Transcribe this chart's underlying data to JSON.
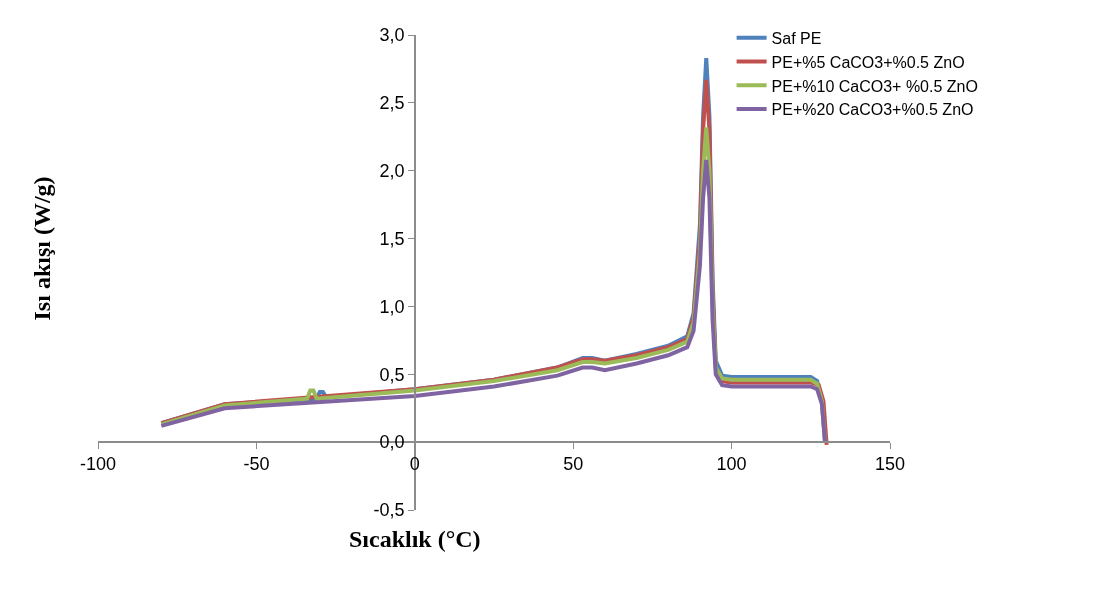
{
  "chart_data": {
    "type": "line",
    "xlabel": "Sıcaklık (°C)",
    "ylabel": "Isı akışı (W/g)",
    "xlim": [
      -100,
      150
    ],
    "xticks": [
      -100,
      -50,
      0,
      50,
      100,
      150
    ],
    "ylim": [
      -0.5,
      3.0
    ],
    "yticks": [
      {
        "value": -0.5,
        "label": "-0,5"
      },
      {
        "value": 0.0,
        "label": "0,0"
      },
      {
        "value": 0.5,
        "label": "0,5"
      },
      {
        "value": 1.0,
        "label": "1,0"
      },
      {
        "value": 1.5,
        "label": "1,5"
      },
      {
        "value": 2.0,
        "label": "2,0"
      },
      {
        "value": 2.5,
        "label": "2,5"
      },
      {
        "value": 3.0,
        "label": "3,0"
      }
    ],
    "legend": "top right",
    "marker": "none",
    "line_style": "solid",
    "series": [
      {
        "name": "Saf PE",
        "color": "#4f81bd",
        "x": [
          -80,
          -60,
          -31,
          -30,
          -29,
          -28,
          0,
          25,
          45,
          53,
          56,
          60,
          70,
          80,
          86,
          88,
          90,
          91,
          92,
          93,
          94,
          95,
          97,
          100,
          110,
          125,
          127,
          128.5,
          129.5
        ],
        "values": [
          0.14,
          0.28,
          0.32,
          0.37,
          0.37,
          0.33,
          0.39,
          0.46,
          0.55,
          0.62,
          0.62,
          0.6,
          0.65,
          0.71,
          0.78,
          0.95,
          1.6,
          2.4,
          2.83,
          2.4,
          1.2,
          0.6,
          0.49,
          0.48,
          0.48,
          0.48,
          0.45,
          0.3,
          0.0
        ]
      },
      {
        "name": "PE+%5 CaCO3+%0.5 ZnO",
        "color": "#c0504d",
        "x": [
          -80,
          -60,
          0,
          25,
          45,
          53,
          56,
          60,
          70,
          80,
          86,
          88,
          90,
          91,
          92,
          93,
          94,
          95,
          97,
          100,
          110,
          125,
          127.5,
          129,
          130
        ],
        "values": [
          0.14,
          0.28,
          0.39,
          0.46,
          0.55,
          0.61,
          0.61,
          0.6,
          0.64,
          0.7,
          0.76,
          0.92,
          1.5,
          2.3,
          2.67,
          2.3,
          1.1,
          0.55,
          0.45,
          0.44,
          0.44,
          0.44,
          0.42,
          0.3,
          -0.02
        ]
      },
      {
        "name": "PE+%10 CaCO3+ %0.5 ZnO",
        "color": "#9bbb59",
        "x": [
          -80,
          -60,
          -34,
          -33,
          -32,
          -31,
          0,
          25,
          45,
          53,
          56,
          60,
          70,
          80,
          86,
          88,
          90,
          91,
          92,
          93,
          94,
          95,
          97,
          100,
          110,
          125,
          127,
          128.5,
          129.5
        ],
        "values": [
          0.13,
          0.27,
          0.32,
          0.38,
          0.38,
          0.32,
          0.38,
          0.45,
          0.53,
          0.59,
          0.59,
          0.58,
          0.62,
          0.68,
          0.74,
          0.88,
          1.4,
          2.0,
          2.32,
          2.0,
          1.0,
          0.55,
          0.47,
          0.46,
          0.46,
          0.46,
          0.43,
          0.3,
          0.0
        ]
      },
      {
        "name": "PE+%20 CaCO3+%0.5 ZnO",
        "color": "#8064a2",
        "x": [
          -80,
          -60,
          0,
          25,
          45,
          53,
          56,
          60,
          70,
          80,
          86,
          88,
          90,
          91,
          92,
          93,
          94,
          95,
          97,
          100,
          110,
          125,
          127,
          128.5,
          129.5
        ],
        "values": [
          0.12,
          0.25,
          0.34,
          0.41,
          0.49,
          0.55,
          0.55,
          0.53,
          0.58,
          0.64,
          0.7,
          0.82,
          1.3,
          1.8,
          2.08,
          1.8,
          0.9,
          0.5,
          0.42,
          0.41,
          0.41,
          0.41,
          0.39,
          0.28,
          0.0
        ]
      }
    ]
  }
}
